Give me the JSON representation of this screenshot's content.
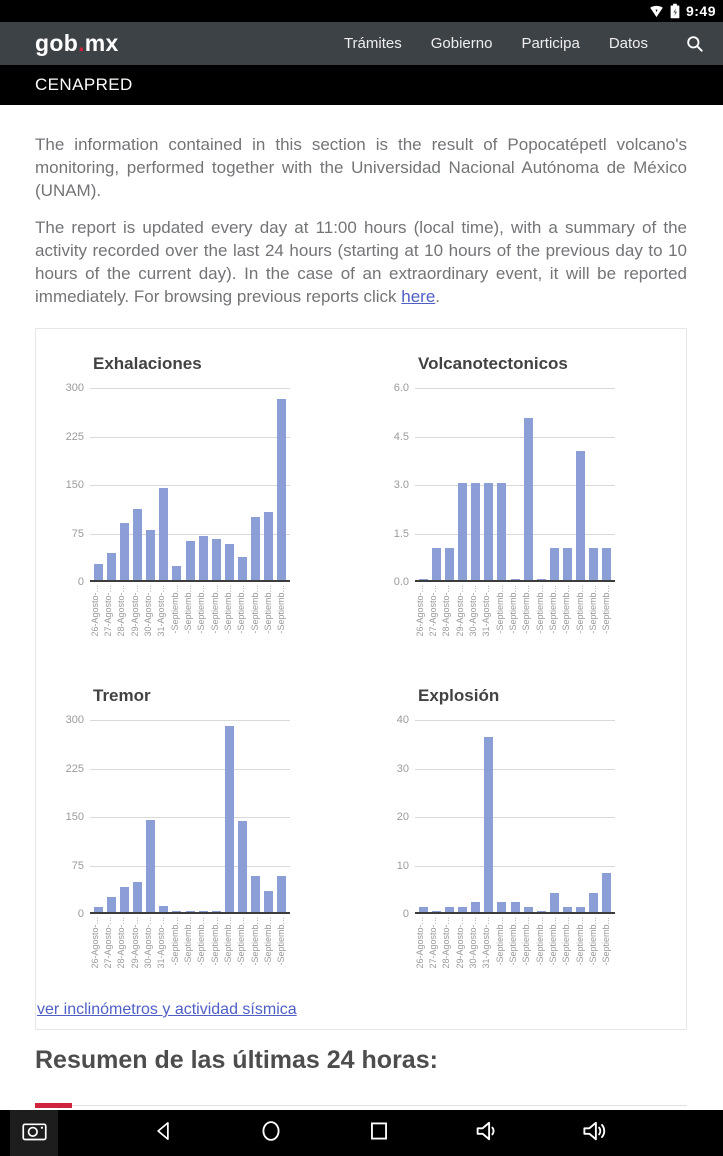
{
  "status_bar": {
    "time": "9:49"
  },
  "navbar": {
    "logo": {
      "gob": "gob",
      "dot": ".",
      "mx": "mx"
    },
    "items": [
      {
        "label": "Trámites"
      },
      {
        "label": "Gobierno"
      },
      {
        "label": "Participa"
      },
      {
        "label": "Datos"
      }
    ]
  },
  "subheader": {
    "title": "CENAPRED"
  },
  "content": {
    "paragraph1": "The information contained in this section is the result of Popocatépetl volcano's monitoring, performed together with the Universidad Nacional Autónoma de México (UNAM).",
    "paragraph2": {
      "text_before_link": "The report is updated every day at 11:00 hours (local time), with a summary of the activity recorded over the last 24 hours (starting at 10 hours of the previous day to 10 hours of the current day). In the case of an extraordinary event, it will be reported immediately. For browsing previous reports click ",
      "link_text": "here",
      "text_after_link": "."
    },
    "charts_link": "ver inclinómetros y actividad sísmica",
    "heading": "Resumen de las últimas 24 horas:"
  },
  "chart_data": [
    {
      "type": "bar",
      "title": "Exhalaciones",
      "categories": [
        "26-Agosto-...",
        "27-Agosto-...",
        "28-Agosto-...",
        "29-Agosto-...",
        "30-Agosto-...",
        "31-Agosto-...",
        "-Septiemb...",
        "-Septiemb...",
        "-Septiemb...",
        "-Septiemb...",
        "-Septiemb...",
        "-Septiemb...",
        "-Septiemb...",
        "-Septiemb...",
        "-Septiemb..."
      ],
      "values": [
        25,
        41,
        88,
        110,
        77,
        143,
        22,
        60,
        68,
        63,
        55,
        36,
        97,
        105,
        280
      ],
      "ylim": [
        0,
        300
      ],
      "yticks": [
        "300",
        "225",
        "150",
        "75",
        "0"
      ],
      "grid": true,
      "legend": "none"
    },
    {
      "type": "bar",
      "title": "Volcanotectonicos",
      "categories": [
        "26-Agosto-...",
        "27-Agosto-...",
        "28-Agosto-...",
        "29-Agosto-...",
        "30-Agosto-...",
        "31-Agosto-...",
        "-Septiemb...",
        "-Septiemb...",
        "-Septiemb...",
        "-Septiemb...",
        "-Septiemb...",
        "-Septiemb...",
        "-Septiemb...",
        "-Septiemb...",
        "-Septiemb..."
      ],
      "values": [
        0,
        1,
        1,
        3,
        3,
        3,
        3,
        0,
        5,
        0,
        1,
        1,
        4,
        1,
        1
      ],
      "ylim": [
        0,
        6
      ],
      "yticks": [
        "6.0",
        "4.5",
        "3.0",
        "1.5",
        "0.0"
      ],
      "grid": true,
      "legend": "none"
    },
    {
      "type": "bar",
      "title": "Tremor",
      "categories": [
        "26-Agosto-...",
        "27-Agosto-...",
        "28-Agosto-...",
        "29-Agosto-...",
        "30-Agosto-...",
        "31-Agosto-...",
        "-Septiemb...",
        "-Septiemb...",
        "-Septiemb...",
        "-Septiemb...",
        "-Septiemb...",
        "-Septiemb...",
        "-Septiemb...",
        "-Septiemb...",
        "-Septiemb..."
      ],
      "values": [
        7,
        23,
        38,
        46,
        143,
        9,
        0,
        0,
        0,
        0,
        287,
        140,
        55,
        32,
        56
      ],
      "ylim": [
        0,
        300
      ],
      "yticks": [
        "300",
        "225",
        "150",
        "75",
        "0"
      ],
      "grid": true,
      "legend": "none"
    },
    {
      "type": "bar",
      "title": "Explosión",
      "categories": [
        "26-Agosto-...",
        "27-Agosto-...",
        "28-Agosto-...",
        "29-Agosto-...",
        "30-Agosto-...",
        "31-Agosto-...",
        "-Septiemb...",
        "-Septiemb...",
        "-Septiemb...",
        "-Septiemb...",
        "-Septiemb...",
        "-Septiemb...",
        "-Septiemb...",
        "-Septiemb...",
        "-Septiemb..."
      ],
      "values": [
        1,
        0,
        1,
        1,
        2,
        36,
        2,
        2,
        1,
        0,
        4,
        1,
        1,
        4,
        8
      ],
      "ylim": [
        0,
        40
      ],
      "yticks": [
        "40",
        "30",
        "20",
        "10",
        "0"
      ],
      "grid": true,
      "legend": "none"
    }
  ],
  "android_nav": {
    "icons": [
      "screenshot-camera",
      "back",
      "home",
      "recents",
      "volume-down",
      "volume-up"
    ]
  },
  "colors": {
    "accent_red": "#d0243e",
    "bar_blue": "#8b9fd6",
    "link_blue": "#4f5fc5",
    "navbar_bg": "#3d4247",
    "gridline": "#d9d9d9"
  }
}
